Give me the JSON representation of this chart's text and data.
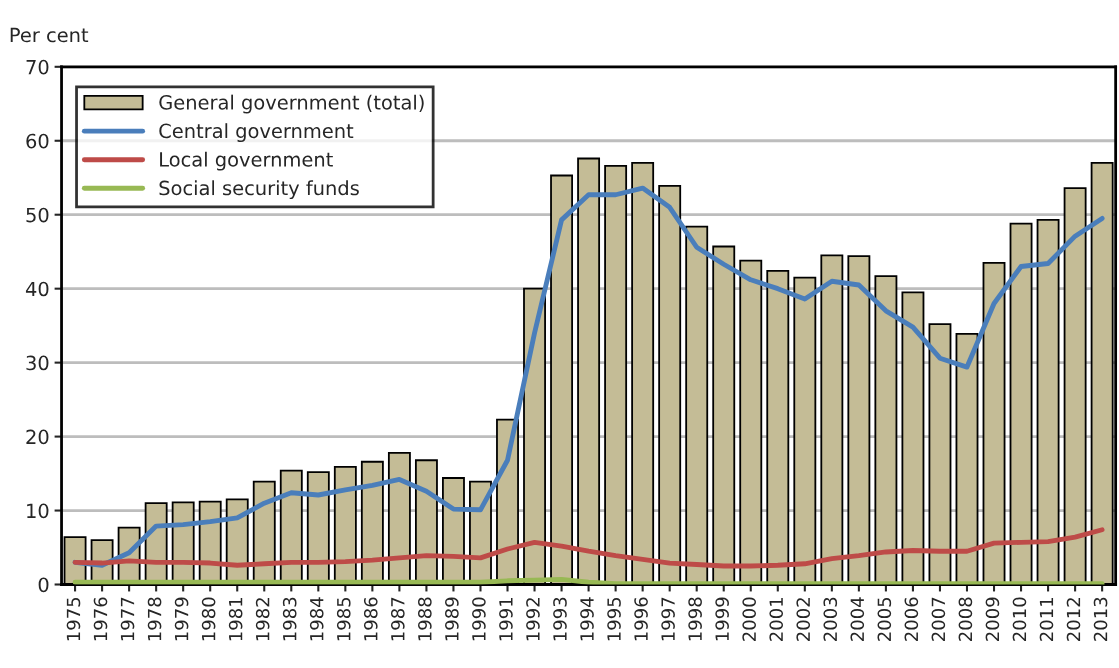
{
  "chart_data": {
    "type": "bar",
    "ylabel": "Per cent",
    "categories": [
      "1975",
      "1976",
      "1977",
      "1978",
      "1979",
      "1980",
      "1981",
      "1982",
      "1983",
      "1984",
      "1985",
      "1986",
      "1987",
      "1988",
      "1989",
      "1990",
      "1991",
      "1992",
      "1993",
      "1994",
      "1995",
      "1996",
      "1997",
      "1998",
      "1999",
      "2000",
      "2001",
      "2002",
      "2003",
      "2004",
      "2005",
      "2006",
      "2007",
      "2008",
      "2009",
      "2010",
      "2011",
      "2012",
      "2013"
    ],
    "series": [
      {
        "name": "General government (total)",
        "color": "#c4bc96",
        "values": [
          6.4,
          6.0,
          7.7,
          11.0,
          11.1,
          11.2,
          11.5,
          13.9,
          15.4,
          15.2,
          15.9,
          16.6,
          17.8,
          16.8,
          14.4,
          13.9,
          22.3,
          40.0,
          55.3,
          57.6,
          56.6,
          57.0,
          53.9,
          48.4,
          45.7,
          43.8,
          42.4,
          41.5,
          44.5,
          44.4,
          41.7,
          39.5,
          35.2,
          33.9,
          43.5,
          48.8,
          49.3,
          53.6,
          57.0
        ]
      },
      {
        "name": "Central government",
        "type": "line",
        "color": "#4a7ebb",
        "values": [
          3.0,
          2.6,
          4.3,
          7.9,
          8.1,
          8.5,
          9.0,
          11.0,
          12.4,
          12.1,
          12.8,
          13.4,
          14.2,
          12.6,
          10.2,
          10.1,
          16.8,
          34.0,
          49.3,
          52.7,
          52.7,
          53.6,
          51.0,
          45.6,
          43.3,
          41.2,
          40.0,
          38.6,
          41.0,
          40.5,
          37.0,
          34.8,
          30.6,
          29.4,
          38.0,
          43.0,
          43.4,
          47.1,
          49.5
        ]
      },
      {
        "name": "Local government",
        "type": "line",
        "color": "#be4b48",
        "values": [
          3.0,
          2.9,
          3.2,
          3.0,
          3.0,
          2.9,
          2.6,
          2.8,
          3.0,
          3.0,
          3.1,
          3.3,
          3.6,
          3.9,
          3.8,
          3.6,
          4.8,
          5.7,
          5.2,
          4.5,
          3.9,
          3.4,
          2.9,
          2.7,
          2.5,
          2.5,
          2.6,
          2.8,
          3.5,
          3.9,
          4.4,
          4.6,
          4.5,
          4.5,
          5.6,
          5.7,
          5.8,
          6.4,
          7.4
        ]
      },
      {
        "name": "Social security funds",
        "type": "line",
        "color": "#98b954",
        "values": [
          0.3,
          0.3,
          0.3,
          0.3,
          0.3,
          0.3,
          0.3,
          0.3,
          0.3,
          0.3,
          0.3,
          0.3,
          0.3,
          0.3,
          0.3,
          0.3,
          0.5,
          0.6,
          0.7,
          0.3,
          0.1,
          0.1,
          0.1,
          0.1,
          0.1,
          0.1,
          0.1,
          0.1,
          0.1,
          0.1,
          0.1,
          0.1,
          0.1,
          0.1,
          0.1,
          0.1,
          0.1,
          0.1,
          0.1
        ]
      }
    ],
    "ylim": [
      0,
      70
    ],
    "yticks": [
      0,
      10,
      20,
      30,
      40,
      50,
      60,
      70
    ],
    "grid": "y",
    "legend": "top left"
  }
}
